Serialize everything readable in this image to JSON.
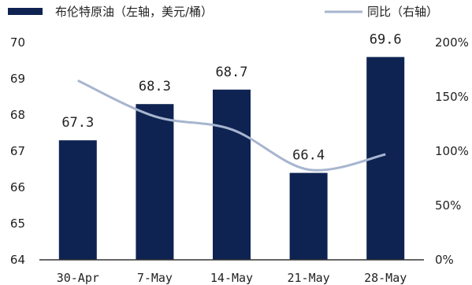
{
  "chart_data": {
    "type": "bar",
    "categories": [
      "30-Apr",
      "7-May",
      "14-May",
      "21-May",
      "28-May"
    ],
    "series": [
      {
        "name": "布伦特原油（左轴，美元/桶）",
        "type": "bar",
        "axis": "left",
        "color": "#0f2352",
        "values": [
          67.3,
          68.3,
          68.7,
          66.4,
          69.6
        ],
        "data_labels": [
          "67.3",
          "68.3",
          "68.7",
          "66.4",
          "69.6"
        ]
      },
      {
        "name": "同比（右轴）",
        "type": "line",
        "axis": "right",
        "color": "#a7b5cf",
        "values": [
          165,
          132,
          120,
          83,
          97
        ]
      }
    ],
    "y_left": {
      "lim": [
        64,
        70
      ],
      "ticks": [
        "64",
        "65",
        "66",
        "67",
        "68",
        "69",
        "70"
      ]
    },
    "y_right": {
      "lim": [
        0,
        200
      ],
      "ticks": [
        "0%",
        "50%",
        "100%",
        "150%",
        "200%"
      ]
    },
    "legend_position": "top",
    "grid": false
  }
}
